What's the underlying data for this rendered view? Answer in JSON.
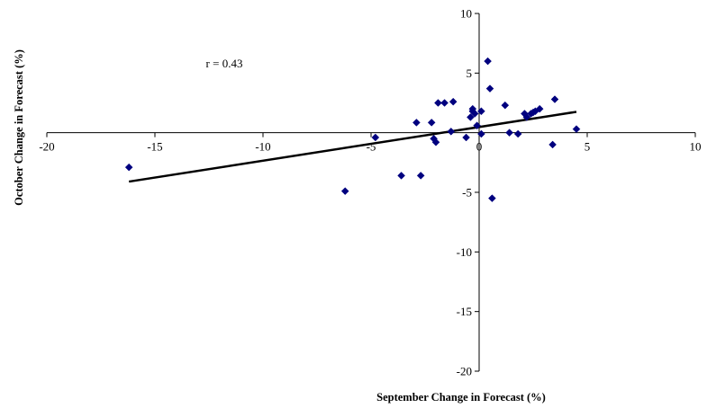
{
  "chart_data": {
    "type": "scatter",
    "title": "",
    "xlabel": "September Change in Forecast (%)",
    "ylabel": "October Change in Forecast (%)",
    "xlim": [
      -20,
      10
    ],
    "ylim": [
      -20,
      10
    ],
    "x_ticks": [
      -20,
      -15,
      -10,
      -5,
      0,
      5,
      10
    ],
    "y_ticks": [
      10,
      5,
      -5,
      -10,
      -15,
      -20
    ],
    "axes_cross_at_origin": true,
    "grid": false,
    "legend": "none",
    "annotation": "r = 0.43",
    "marker_color": "#00007F",
    "marker_shape": "diamond",
    "trendline": {
      "color": "#000000",
      "points": [
        {
          "x": -16.2,
          "y": -4.1
        },
        {
          "x": 4.5,
          "y": 1.75
        }
      ]
    },
    "points": [
      {
        "x": -16.2,
        "y": -2.9
      },
      {
        "x": -6.2,
        "y": -4.9
      },
      {
        "x": -4.8,
        "y": -0.4
      },
      {
        "x": -3.6,
        "y": -3.6
      },
      {
        "x": -2.9,
        "y": 0.85
      },
      {
        "x": -2.7,
        "y": -3.6
      },
      {
        "x": -2.2,
        "y": 0.85
      },
      {
        "x": -2.1,
        "y": -0.5
      },
      {
        "x": -2.0,
        "y": -0.8
      },
      {
        "x": -1.9,
        "y": 2.5
      },
      {
        "x": -1.6,
        "y": 2.5
      },
      {
        "x": -1.3,
        "y": 0.1
      },
      {
        "x": -1.2,
        "y": 2.6
      },
      {
        "x": -0.6,
        "y": -0.4
      },
      {
        "x": -0.4,
        "y": 1.3
      },
      {
        "x": -0.3,
        "y": 1.8
      },
      {
        "x": -0.3,
        "y": 2.0
      },
      {
        "x": -0.2,
        "y": 1.6
      },
      {
        "x": -0.1,
        "y": 0.6
      },
      {
        "x": 0.1,
        "y": -0.1
      },
      {
        "x": 0.1,
        "y": 1.8
      },
      {
        "x": 0.4,
        "y": 6.0
      },
      {
        "x": 0.5,
        "y": 3.7
      },
      {
        "x": 0.6,
        "y": -5.5
      },
      {
        "x": 1.2,
        "y": 2.3
      },
      {
        "x": 1.4,
        "y": 0.0
      },
      {
        "x": 1.8,
        "y": -0.1
      },
      {
        "x": 2.1,
        "y": 1.6
      },
      {
        "x": 2.2,
        "y": 1.3
      },
      {
        "x": 2.4,
        "y": 1.6
      },
      {
        "x": 2.5,
        "y": 1.7
      },
      {
        "x": 2.6,
        "y": 1.8
      },
      {
        "x": 2.8,
        "y": 2.0
      },
      {
        "x": 3.4,
        "y": -1.0
      },
      {
        "x": 3.5,
        "y": 2.8
      },
      {
        "x": 4.5,
        "y": 0.3
      }
    ]
  }
}
